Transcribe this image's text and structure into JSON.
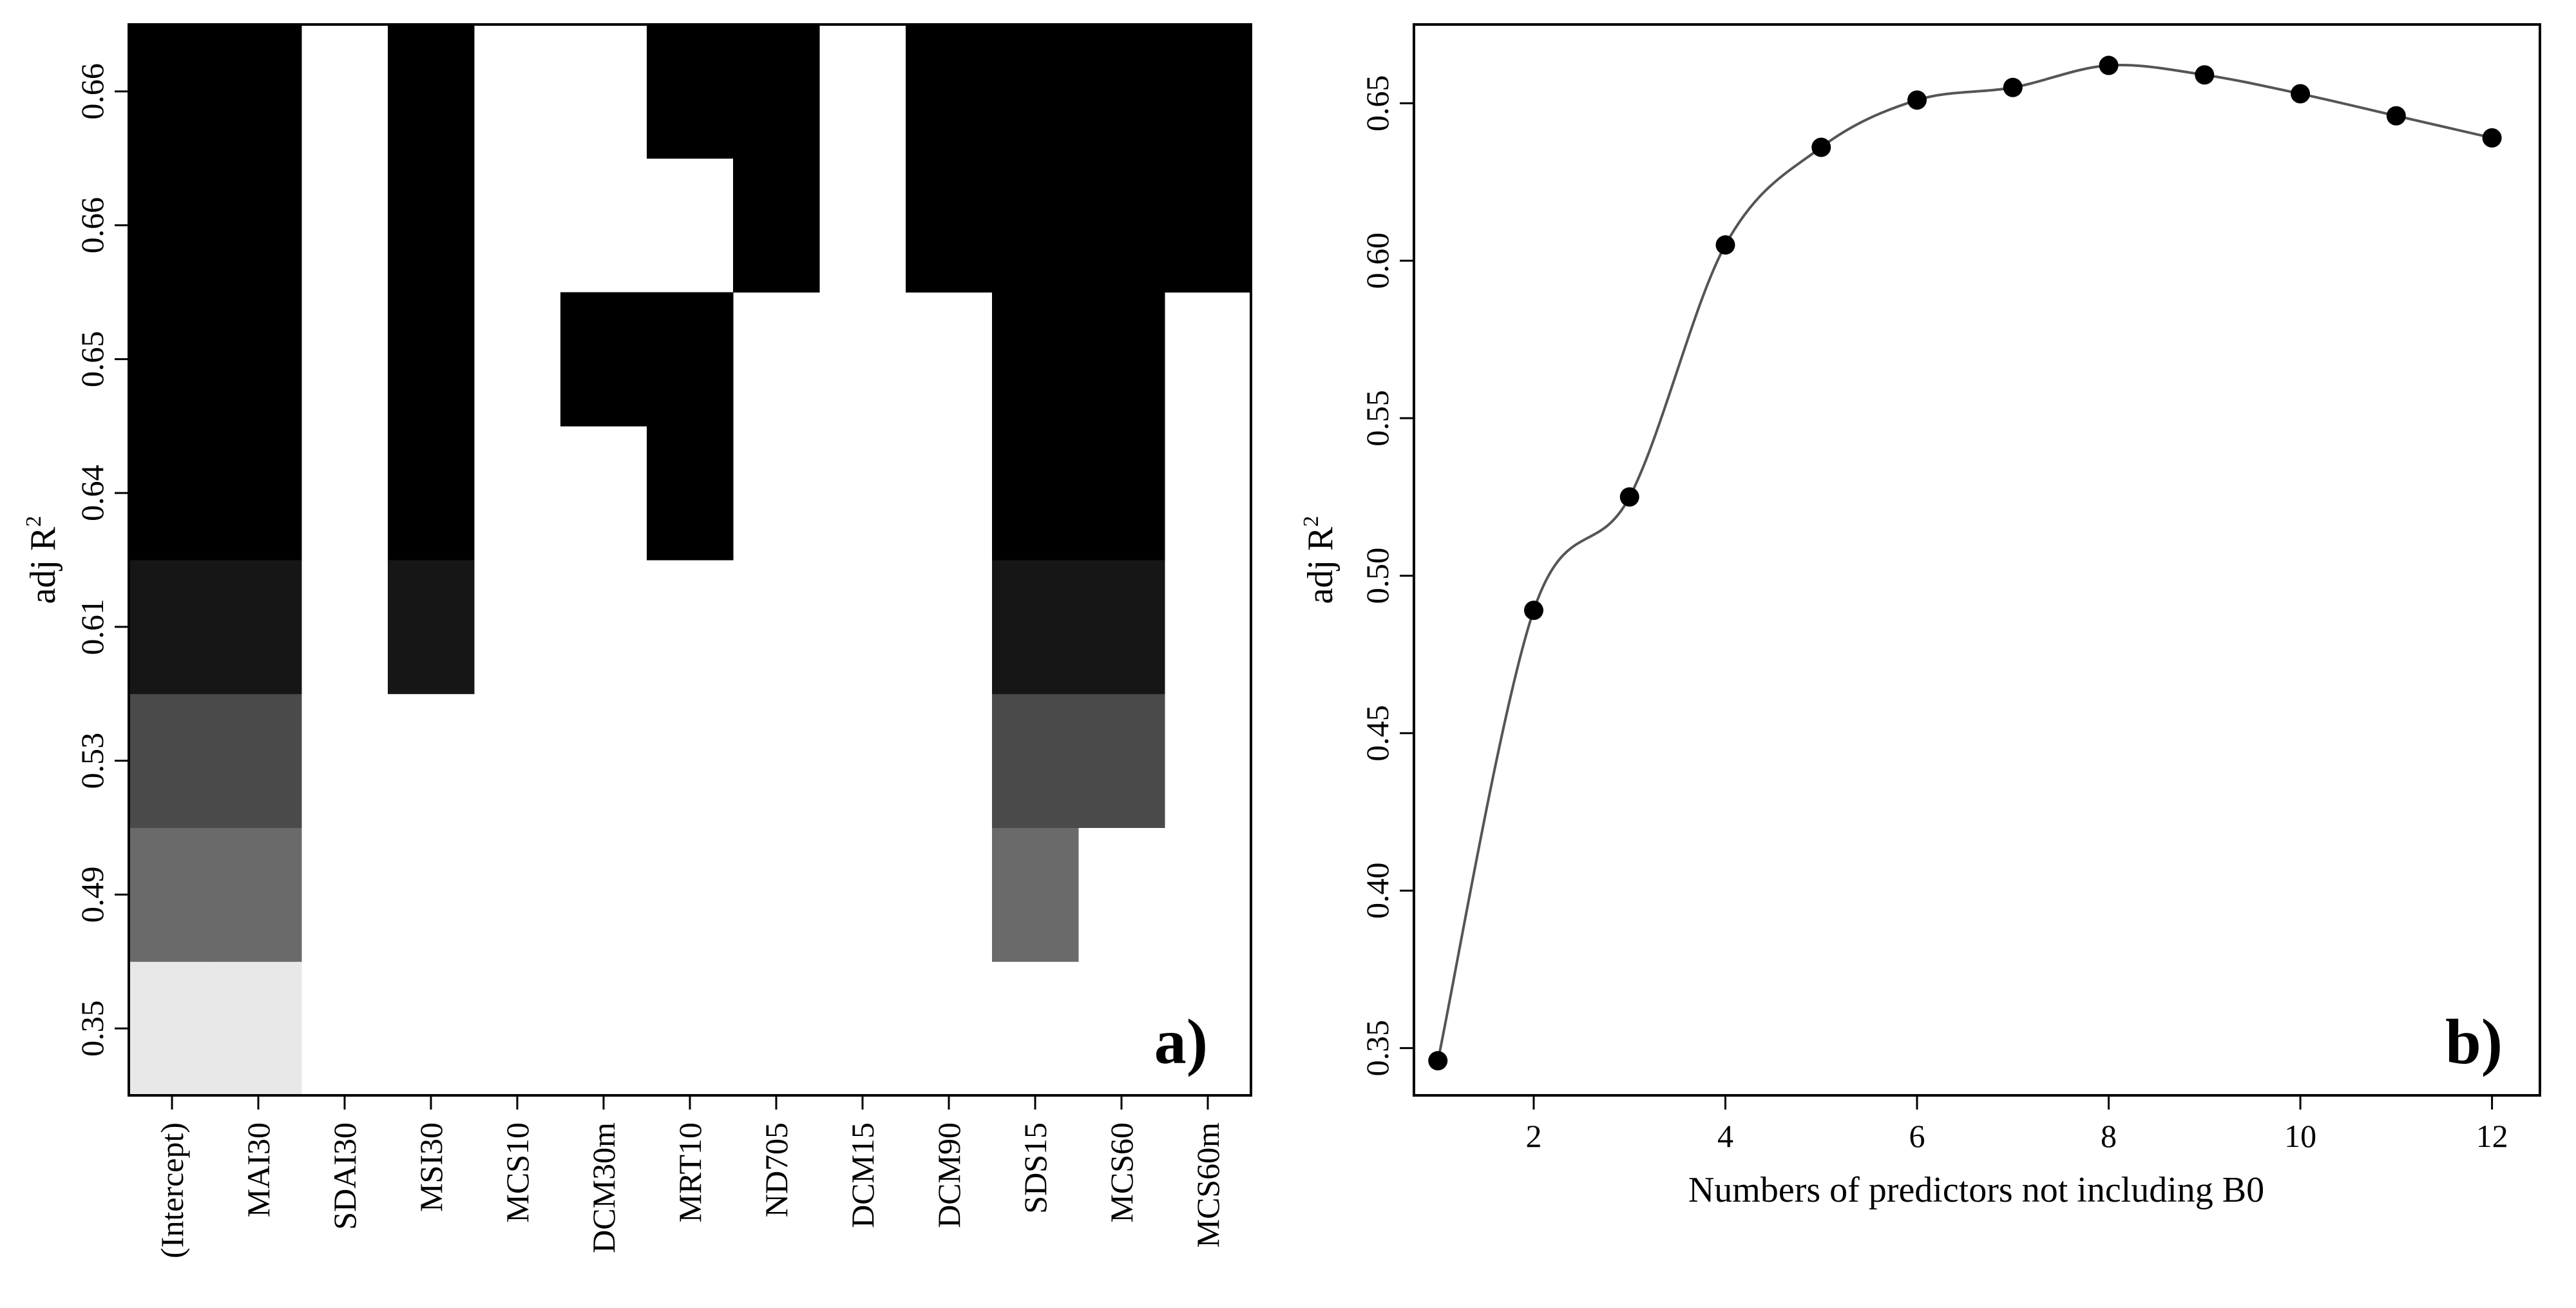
{
  "chart_data": [
    {
      "type": "heatmap",
      "panel_label": "a)",
      "ylabel": "adj R",
      "ylabel_superscript": "2",
      "columns": [
        "(Intercept)",
        "MAI30",
        "SDAI30",
        "MSI30",
        "MCS10",
        "DCM30m",
        "MRT10",
        "ND705",
        "DCM15",
        "DCM90",
        "SDS15",
        "MCS60",
        "MCS60m"
      ],
      "row_labels": [
        "0.35",
        "0.49",
        "0.53",
        "0.61",
        "0.64",
        "0.65",
        "0.66",
        "0.66"
      ],
      "row_colors": [
        "#e8e8e8",
        "#6a6a6a",
        "#4a4a4a",
        "#161616",
        "#000000",
        "#000000",
        "#000000",
        "#000000"
      ],
      "included": [
        [
          1,
          1,
          0,
          0,
          0,
          0,
          0,
          0,
          0,
          0,
          0,
          0,
          0
        ],
        [
          1,
          1,
          0,
          0,
          0,
          0,
          0,
          0,
          0,
          0,
          1,
          0,
          0
        ],
        [
          1,
          1,
          0,
          0,
          0,
          0,
          0,
          0,
          0,
          0,
          1,
          1,
          0
        ],
        [
          1,
          1,
          0,
          1,
          0,
          0,
          0,
          0,
          0,
          0,
          1,
          1,
          0
        ],
        [
          1,
          1,
          0,
          1,
          0,
          0,
          1,
          0,
          0,
          0,
          1,
          1,
          0
        ],
        [
          1,
          1,
          0,
          1,
          0,
          1,
          1,
          0,
          0,
          0,
          1,
          1,
          0
        ],
        [
          1,
          1,
          0,
          1,
          0,
          0,
          0,
          1,
          0,
          1,
          1,
          1,
          1
        ],
        [
          1,
          1,
          0,
          1,
          0,
          0,
          1,
          1,
          0,
          1,
          1,
          1,
          1
        ]
      ],
      "grid": false
    },
    {
      "type": "line",
      "panel_label": "b)",
      "xlabel": "Numbers of predictors not including B0",
      "ylabel": "adj R",
      "ylabel_superscript": "2",
      "x": [
        1,
        2,
        3,
        4,
        5,
        6,
        7,
        8,
        9,
        10,
        11,
        12
      ],
      "y": [
        0.346,
        0.489,
        0.525,
        0.605,
        0.636,
        0.651,
        0.655,
        0.662,
        0.659,
        0.653,
        0.646,
        0.639
      ],
      "xlim": [
        0.75,
        12.5
      ],
      "ylim": [
        0.335,
        0.675
      ],
      "xticks": [
        2,
        4,
        6,
        8,
        10,
        12
      ],
      "yticks": [
        0.35,
        0.4,
        0.45,
        0.5,
        0.55,
        0.6,
        0.65
      ],
      "ytick_labels": [
        "0.35",
        "0.40",
        "0.45",
        "0.50",
        "0.55",
        "0.60",
        "0.65"
      ],
      "markers": "filled-circle",
      "smoothed_line": true,
      "grid": false
    }
  ]
}
